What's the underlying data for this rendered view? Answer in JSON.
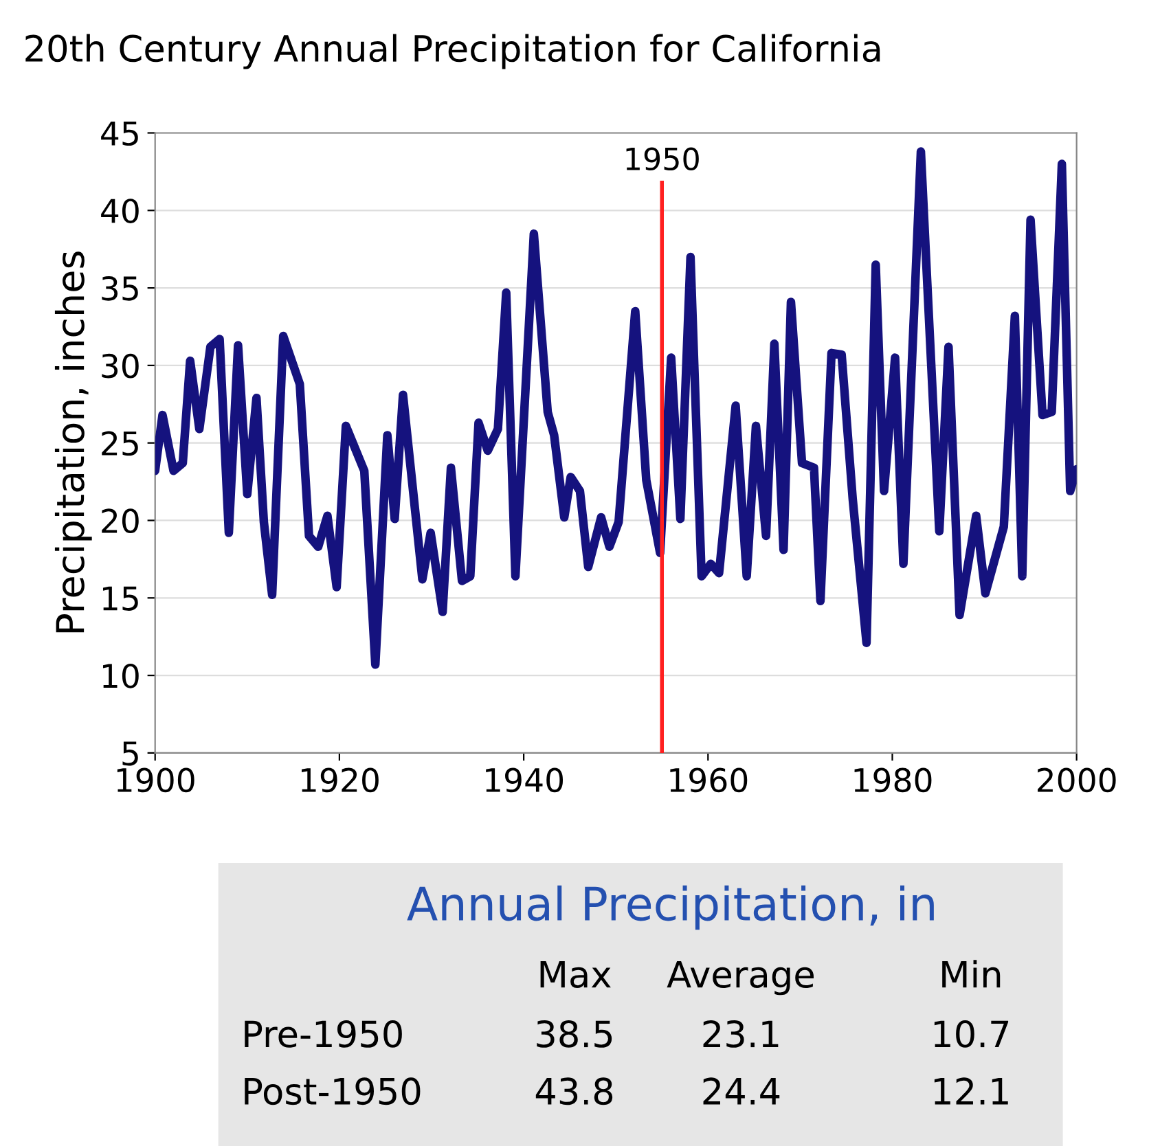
{
  "chart_data": {
    "type": "line",
    "title": "20th Century Annual Precipitation for California",
    "ylabel": "Precipitation, inches",
    "x": [
      1900,
      1900.8,
      1902,
      1903,
      1903.8,
      1904.8,
      1906,
      1907,
      1908,
      1909,
      1910,
      1911,
      1911.8,
      1912.7,
      1913.9,
      1915.7,
      1916.7,
      1917.7,
      1918.7,
      1919.7,
      1920.7,
      1922.7,
      1923.9,
      1925.2,
      1926,
      1926.9,
      1929,
      1929.9,
      1931.2,
      1932.1,
      1933.3,
      1934.2,
      1935.1,
      1936.1,
      1937.2,
      1938.1,
      1939.1,
      1941.1,
      1942.6,
      1943.3,
      1944.4,
      1945.1,
      1946.1,
      1947,
      1948.4,
      1949.3,
      1950.3,
      1952.1,
      1953.3,
      1954.8,
      1956,
      1957,
      1958.1,
      1959.3,
      1960.3,
      1961.2,
      1963,
      1964.2,
      1965.2,
      1966.3,
      1967.2,
      1968.2,
      1969,
      1970.2,
      1971.5,
      1972.2,
      1973.4,
      1974.5,
      1975.7,
      1977.2,
      1978.2,
      1979.1,
      1980.3,
      1981.2,
      1983.1,
      1985.1,
      1986.1,
      1987.3,
      1989.1,
      1990.1,
      1992.1,
      1993.3,
      1994.1,
      1995,
      1996.3,
      1997.3,
      1998.4,
      1999.3,
      2000
    ],
    "series": [
      {
        "color": "#15127e",
        "values": [
          23.2,
          26.8,
          23.2,
          23.7,
          30.3,
          25.9,
          31.2,
          31.7,
          19.2,
          31.3,
          21.7,
          27.9,
          19.9,
          15.2,
          31.9,
          28.8,
          19.0,
          18.3,
          20.3,
          15.7,
          26.1,
          23.2,
          10.7,
          25.5,
          20.1,
          28.1,
          16.2,
          19.2,
          14.1,
          23.4,
          16.1,
          16.4,
          26.3,
          24.5,
          25.9,
          34.7,
          16.4,
          38.5,
          27.0,
          25.5,
          20.2,
          22.8,
          21.9,
          17.0,
          20.2,
          18.3,
          19.9,
          33.5,
          22.6,
          17.9,
          30.5,
          20.1,
          37.0,
          16.4,
          17.2,
          16.6,
          27.4,
          16.4,
          26.1,
          19.0,
          31.4,
          18.1,
          34.1,
          23.7,
          23.4,
          14.8,
          30.8,
          30.7,
          21.4,
          12.1,
          36.5,
          21.9,
          30.5,
          17.2,
          43.8,
          19.3,
          31.2,
          13.9,
          20.3,
          15.3,
          19.6,
          33.2,
          16.4,
          39.4,
          26.8,
          27.0,
          43.0,
          21.9,
          23.3
        ]
      }
    ],
    "xlim": [
      1900,
      2000
    ],
    "xticks": [
      1900,
      1920,
      1940,
      1960,
      1980,
      2000
    ],
    "ylim": [
      5,
      45
    ],
    "yticks": [
      5,
      10,
      15,
      20,
      25,
      30,
      35,
      40,
      45
    ],
    "grid": "y",
    "marker": "none",
    "line_style": "solid",
    "ref_lines": [
      {
        "axis": "x",
        "value": 1955,
        "color": "#ff2020"
      }
    ],
    "annotations": [
      "1950",
      "Annual Precipitation, in",
      "Max",
      "Average",
      "Min",
      "Pre-1950",
      "38.5",
      "23.1",
      "10.7",
      "Post-1950",
      "43.8",
      "24.4",
      "12.1"
    ]
  }
}
